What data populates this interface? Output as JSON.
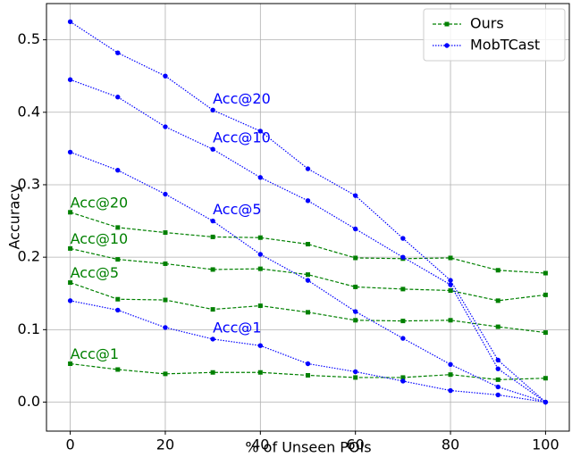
{
  "chart_data": {
    "type": "line",
    "xlabel": "% of Unseen POIs",
    "ylabel": "Accuracy",
    "x": [
      0,
      10,
      20,
      30,
      40,
      50,
      60,
      70,
      80,
      90,
      100
    ],
    "xlim": [
      -5,
      105
    ],
    "xticks": [
      0,
      20,
      40,
      60,
      80,
      100
    ],
    "ylim": [
      -0.04,
      0.55
    ],
    "yticks": [
      {
        "value": 0,
        "label": "0.0"
      },
      0.1,
      0.2,
      0.3,
      0.4,
      0.5
    ],
    "grid": true,
    "legend": "upper right",
    "series": [
      {
        "name": "Ours",
        "color": "#008000",
        "linestyle": "dashed",
        "marker": "square",
        "lines": [
          {
            "label": "Acc@20",
            "values": [
              0.262,
              0.241,
              0.234,
              0.228,
              0.227,
              0.218,
              0.199,
              0.198,
              0.199,
              0.182,
              0.178
            ]
          },
          {
            "label": "Acc@10",
            "values": [
              0.212,
              0.197,
              0.191,
              0.183,
              0.184,
              0.176,
              0.159,
              0.156,
              0.154,
              0.14,
              0.148
            ]
          },
          {
            "label": "Acc@5",
            "values": [
              0.165,
              0.142,
              0.141,
              0.128,
              0.133,
              0.124,
              0.113,
              0.112,
              0.113,
              0.104,
              0.096
            ]
          },
          {
            "label": "Acc@1",
            "values": [
              0.053,
              0.045,
              0.039,
              0.041,
              0.041,
              0.037,
              0.034,
              0.034,
              0.038,
              0.031,
              0.033
            ]
          }
        ]
      },
      {
        "name": "MobTCast",
        "color": "#0000ff",
        "linestyle": "dotted",
        "marker": "circle",
        "lines": [
          {
            "label": "Acc@20",
            "values": [
              0.525,
              0.482,
              0.45,
              0.403,
              0.374,
              0.322,
              0.285,
              0.226,
              0.168,
              0.058,
              0.0
            ]
          },
          {
            "label": "Acc@10",
            "values": [
              0.445,
              0.421,
              0.38,
              0.349,
              0.31,
              0.278,
              0.239,
              0.2,
              0.162,
              0.046,
              0.0
            ]
          },
          {
            "label": "Acc@5",
            "values": [
              0.345,
              0.32,
              0.287,
              0.25,
              0.204,
              0.168,
              0.125,
              0.088,
              0.052,
              0.021,
              0.0
            ]
          },
          {
            "label": "Acc@1",
            "values": [
              0.14,
              0.127,
              0.103,
              0.087,
              0.078,
              0.053,
              0.042,
              0.029,
              0.016,
              0.01,
              0.0
            ]
          }
        ]
      }
    ]
  }
}
